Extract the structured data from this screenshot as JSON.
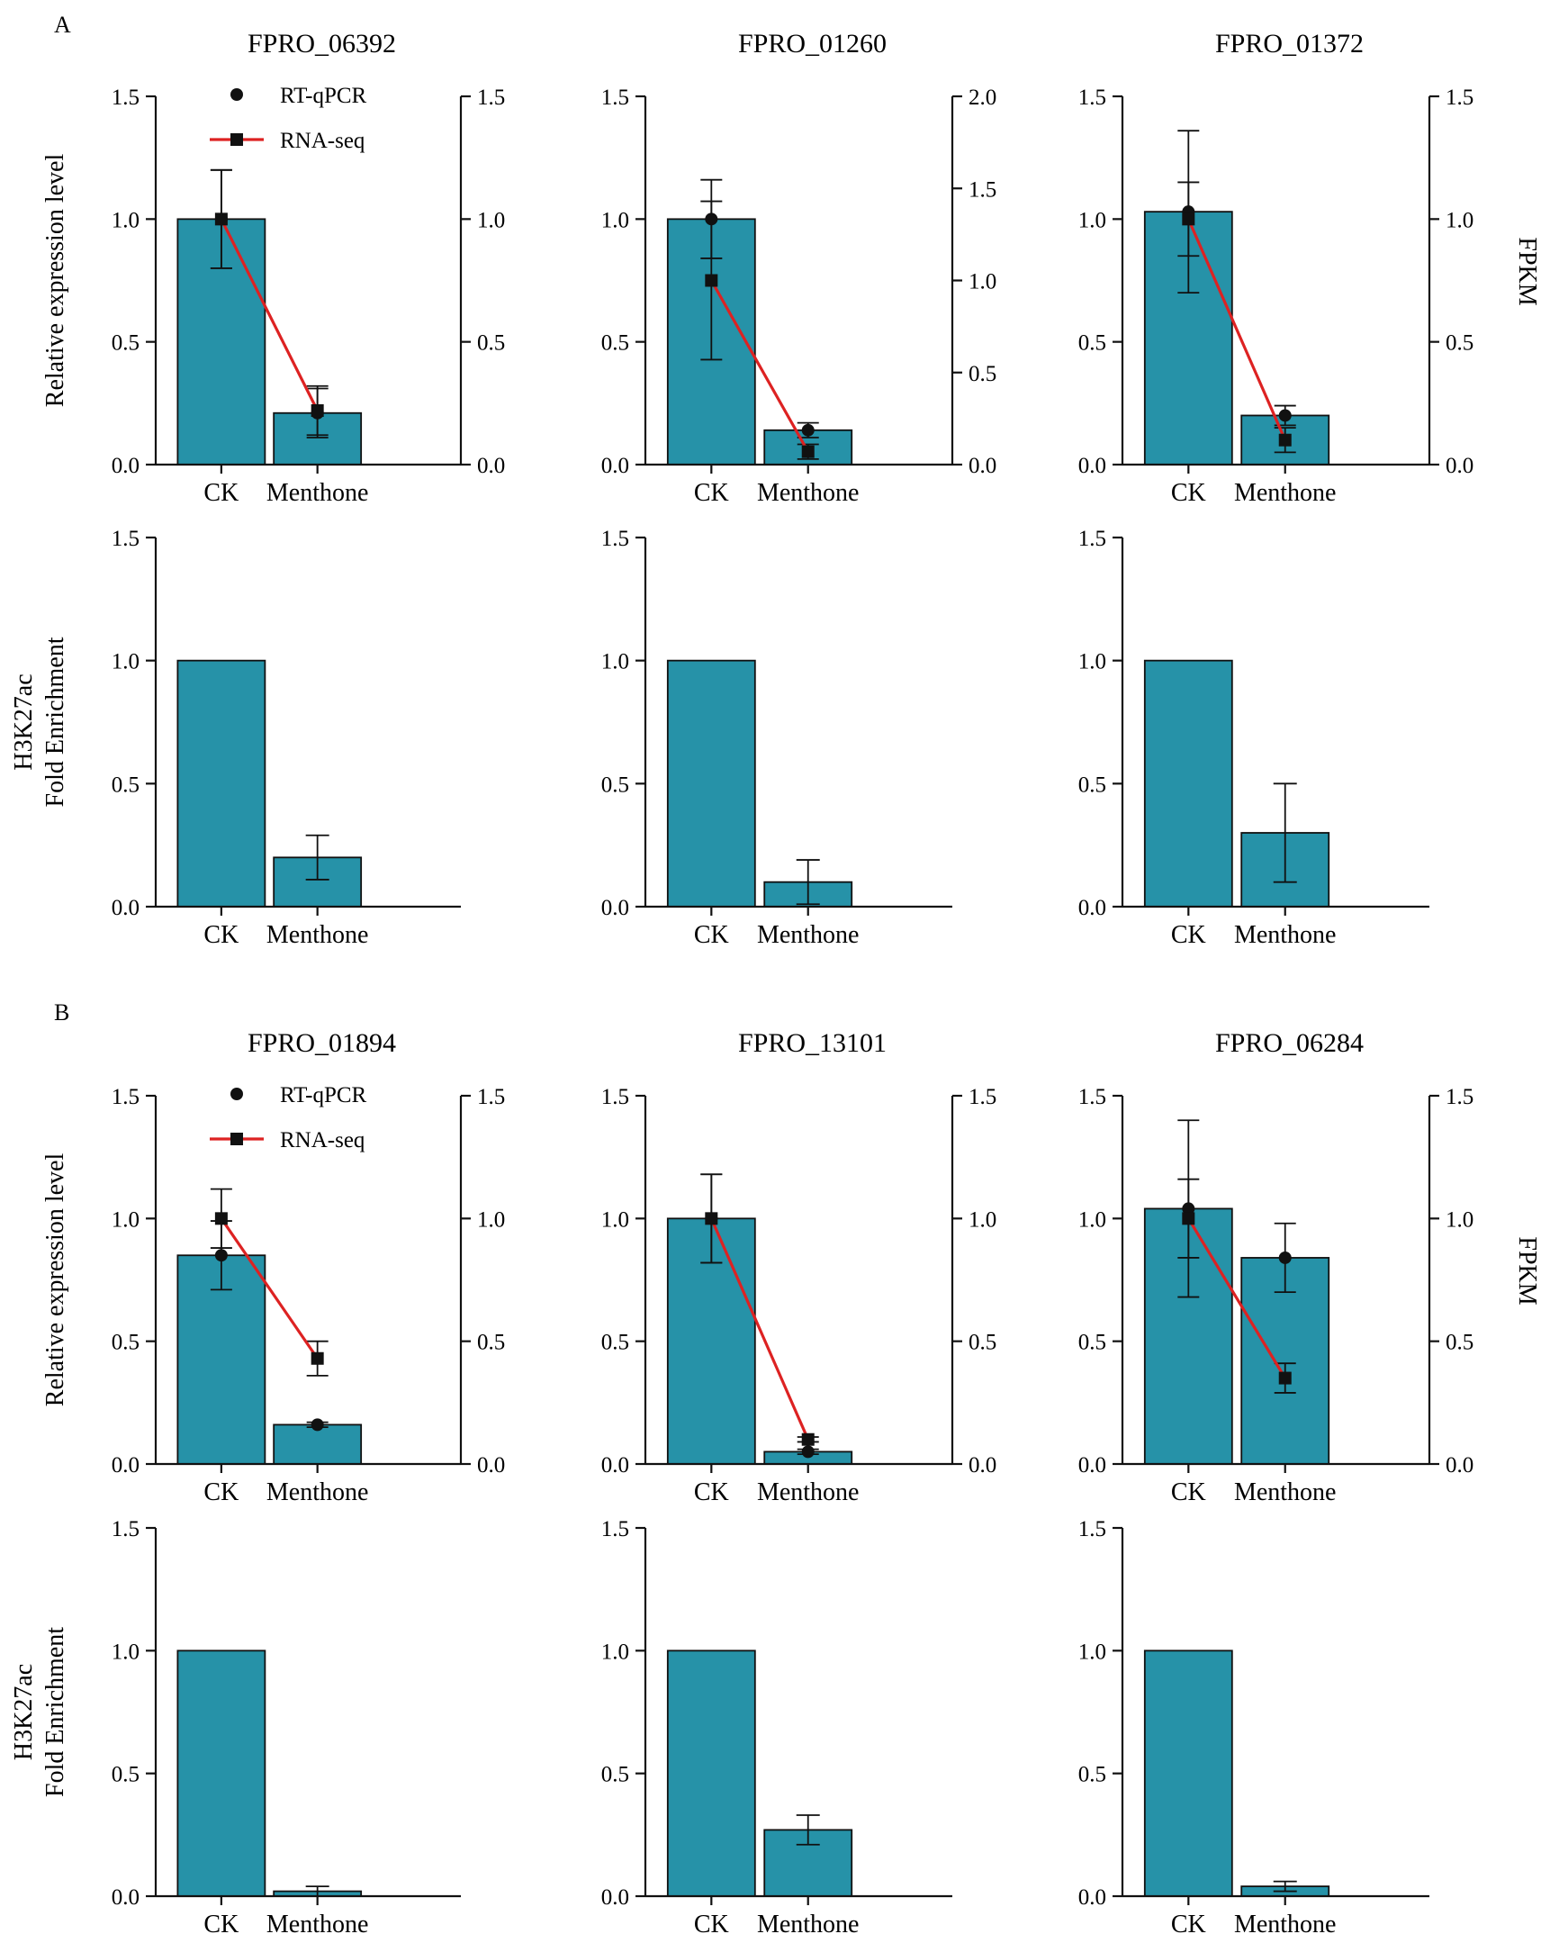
{
  "figure": {
    "colors": {
      "bar": "#2692a8",
      "bar_edge": "#111111",
      "line": "#dd2222",
      "point": "#111111",
      "axis": "#111111"
    },
    "y_label_expression": "Relative expression level",
    "y_label_right": "FPKM",
    "y_label_enrichment_line1": "H3K27ac",
    "y_label_enrichment_line2": "Fold Enrichment",
    "legend": {
      "rt_qpcr": "RT-qPCR",
      "rna_seq": "RNA-seq"
    }
  },
  "chart_data": [
    {
      "panel": "A",
      "gene": "FPRO_06392",
      "type": "bar+line",
      "categories": [
        "CK",
        "Menthone"
      ],
      "ylim": [
        0,
        1.5
      ],
      "yticks": [
        "0.0",
        "0.5",
        "1.0",
        "1.5"
      ],
      "y2lim": [
        0,
        1.5
      ],
      "y2ticks": [
        "0.0",
        "0.5",
        "1.0",
        "1.5"
      ],
      "rt_qpcr": {
        "values": [
          1.0,
          0.21
        ],
        "errors": [
          0.2,
          0.1
        ]
      },
      "rna_seq": {
        "values": [
          1.0,
          0.22
        ],
        "errors": [
          0.2,
          0.1
        ]
      },
      "legend": true
    },
    {
      "panel": "A",
      "gene": "FPRO_01260",
      "type": "bar+line",
      "categories": [
        "CK",
        "Menthone"
      ],
      "ylim": [
        0,
        1.5
      ],
      "yticks": [
        "0.0",
        "0.5",
        "1.0",
        "1.5"
      ],
      "y2lim": [
        0,
        2.0
      ],
      "y2ticks": [
        "0.0",
        "0.5",
        "1.0",
        "1.5",
        "2.0"
      ],
      "rt_qpcr": {
        "values": [
          1.0,
          0.14
        ],
        "errors": [
          0.16,
          0.03
        ]
      },
      "rna_seq": {
        "values": [
          1.0,
          0.07
        ],
        "errors": [
          0.43,
          0.04
        ]
      },
      "legend": false
    },
    {
      "panel": "A",
      "gene": "FPRO_01372",
      "type": "bar+line",
      "categories": [
        "CK",
        "Menthone"
      ],
      "ylim": [
        0,
        1.5
      ],
      "yticks": [
        "0.0",
        "0.5",
        "1.0",
        "1.5"
      ],
      "y2lim": [
        0,
        1.5
      ],
      "y2ticks": [
        "0.0",
        "0.5",
        "1.0",
        "1.5"
      ],
      "rt_qpcr": {
        "values": [
          1.03,
          0.2
        ],
        "errors": [
          0.33,
          0.04
        ]
      },
      "rna_seq": {
        "values": [
          1.0,
          0.1
        ],
        "errors": [
          0.15,
          0.05
        ]
      },
      "legend": false
    },
    {
      "panel": "A",
      "gene": "FPRO_06392",
      "type": "bar",
      "categories": [
        "CK",
        "Menthone"
      ],
      "ylim": [
        0,
        1.5
      ],
      "yticks": [
        "0.0",
        "0.5",
        "1.0",
        "1.5"
      ],
      "values": [
        1.0,
        0.2
      ],
      "errors": [
        0,
        0.09
      ]
    },
    {
      "panel": "A",
      "gene": "FPRO_01260",
      "type": "bar",
      "categories": [
        "CK",
        "Menthone"
      ],
      "ylim": [
        0,
        1.5
      ],
      "yticks": [
        "0.0",
        "0.5",
        "1.0",
        "1.5"
      ],
      "values": [
        1.0,
        0.1
      ],
      "errors": [
        0,
        0.09
      ]
    },
    {
      "panel": "A",
      "gene": "FPRO_01372",
      "type": "bar",
      "categories": [
        "CK",
        "Menthone"
      ],
      "ylim": [
        0,
        1.5
      ],
      "yticks": [
        "0.0",
        "0.5",
        "1.0",
        "1.5"
      ],
      "values": [
        1.0,
        0.3
      ],
      "errors": [
        0,
        0.2
      ]
    },
    {
      "panel": "B",
      "gene": "FPRO_01894",
      "type": "bar+line",
      "categories": [
        "CK",
        "Menthone"
      ],
      "ylim": [
        0,
        1.5
      ],
      "yticks": [
        "0.0",
        "0.5",
        "1.0",
        "1.5"
      ],
      "y2lim": [
        0,
        1.5
      ],
      "y2ticks": [
        "0.0",
        "0.5",
        "1.0",
        "1.5"
      ],
      "rt_qpcr": {
        "values": [
          0.85,
          0.16
        ],
        "errors": [
          0.14,
          0.01
        ]
      },
      "rna_seq": {
        "values": [
          1.0,
          0.43
        ],
        "errors": [
          0.12,
          0.07
        ]
      },
      "legend": true
    },
    {
      "panel": "B",
      "gene": "FPRO_13101",
      "type": "bar+line",
      "categories": [
        "CK",
        "Menthone"
      ],
      "ylim": [
        0,
        1.5
      ],
      "yticks": [
        "0.0",
        "0.5",
        "1.0",
        "1.5"
      ],
      "y2lim": [
        0,
        1.5
      ],
      "y2ticks": [
        "0.0",
        "0.5",
        "1.0",
        "1.5"
      ],
      "rt_qpcr": {
        "values": [
          1.0,
          0.05
        ],
        "errors": [
          0.18,
          0.01
        ]
      },
      "rna_seq": {
        "values": [
          1.0,
          0.1
        ],
        "errors": [
          0.18,
          0.01
        ]
      },
      "legend": false
    },
    {
      "panel": "B",
      "gene": "FPRO_06284",
      "type": "bar+line",
      "categories": [
        "CK",
        "Menthone"
      ],
      "ylim": [
        0,
        1.5
      ],
      "yticks": [
        "0.0",
        "0.5",
        "1.0",
        "1.5"
      ],
      "y2lim": [
        0,
        1.5
      ],
      "y2ticks": [
        "0.0",
        "0.5",
        "1.0",
        "1.5"
      ],
      "rt_qpcr": {
        "values": [
          1.04,
          0.84
        ],
        "errors": [
          0.36,
          0.14
        ]
      },
      "rna_seq": {
        "values": [
          1.0,
          0.35
        ],
        "errors": [
          0.16,
          0.06
        ]
      },
      "legend": false
    },
    {
      "panel": "B",
      "gene": "FPRO_01894",
      "type": "bar",
      "categories": [
        "CK",
        "Menthone"
      ],
      "ylim": [
        0,
        1.5
      ],
      "yticks": [
        "0.0",
        "0.5",
        "1.0",
        "1.5"
      ],
      "values": [
        1.0,
        0.02
      ],
      "errors": [
        0,
        0.02
      ]
    },
    {
      "panel": "B",
      "gene": "FPRO_13101",
      "type": "bar",
      "categories": [
        "CK",
        "Menthone"
      ],
      "ylim": [
        0,
        1.5
      ],
      "yticks": [
        "0.0",
        "0.5",
        "1.0",
        "1.5"
      ],
      "values": [
        1.0,
        0.27
      ],
      "errors": [
        0,
        0.06
      ]
    },
    {
      "panel": "B",
      "gene": "FPRO_06284",
      "type": "bar",
      "categories": [
        "CK",
        "Menthone"
      ],
      "ylim": [
        0,
        1.5
      ],
      "yticks": [
        "0.0",
        "0.5",
        "1.0",
        "1.5"
      ],
      "values": [
        1.0,
        0.04
      ],
      "errors": [
        0,
        0.02
      ]
    }
  ]
}
